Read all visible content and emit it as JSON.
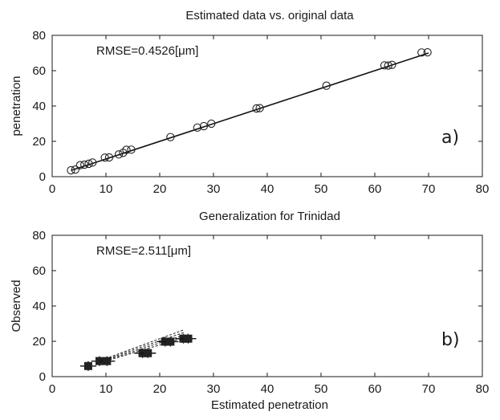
{
  "chart_data": [
    {
      "type": "scatter",
      "title": "Estimated data vs. original data",
      "xlabel": "",
      "ylabel": "penetration",
      "xlim": [
        0,
        80
      ],
      "ylim": [
        0,
        80
      ],
      "xticks": [
        "0",
        "10",
        "20",
        "30",
        "40",
        "50",
        "60",
        "70",
        "80"
      ],
      "yticks": [
        "0",
        "20",
        "40",
        "60",
        "80"
      ],
      "annotation": "RMSE=0.4526[μm]",
      "panel_label": "a)",
      "grid": false,
      "points": [
        [
          3.5,
          3.6
        ],
        [
          4.3,
          4.0
        ],
        [
          5.2,
          6.5
        ],
        [
          6.0,
          6.8
        ],
        [
          6.8,
          7.3
        ],
        [
          7.5,
          8.0
        ],
        [
          9.8,
          10.8
        ],
        [
          10.6,
          10.9
        ],
        [
          12.4,
          12.6
        ],
        [
          13.2,
          13.5
        ],
        [
          13.8,
          15.2
        ],
        [
          14.7,
          15.3
        ],
        [
          22.0,
          22.4
        ],
        [
          27.0,
          27.8
        ],
        [
          28.2,
          28.6
        ],
        [
          29.6,
          30.0
        ],
        [
          38.0,
          38.6
        ],
        [
          38.6,
          38.8
        ],
        [
          51.0,
          51.5
        ],
        [
          61.8,
          63.0
        ],
        [
          62.5,
          62.9
        ],
        [
          63.2,
          63.3
        ],
        [
          68.7,
          70.3
        ],
        [
          69.8,
          70.4
        ]
      ],
      "fit_line": [
        [
          3.5,
          3.5
        ],
        [
          70,
          70
        ]
      ]
    },
    {
      "type": "scatter",
      "title": "Generalization for Trinidad",
      "xlabel": "Estimated penetration",
      "ylabel": "Observed",
      "xlim": [
        0,
        80
      ],
      "ylim": [
        0,
        80
      ],
      "xticks": [
        "0",
        "10",
        "20",
        "30",
        "40",
        "50",
        "60",
        "70",
        "80"
      ],
      "yticks": [
        "0",
        "20",
        "40",
        "60",
        "80"
      ],
      "annotation": "RMSE=2.511[μm]",
      "panel_label": "b)",
      "grid": false,
      "points": [
        [
          6.7,
          6.0
        ],
        [
          8.8,
          8.8
        ],
        [
          10.2,
          8.8
        ],
        [
          16.8,
          13.3
        ],
        [
          17.8,
          13.3
        ],
        [
          21.0,
          19.8
        ],
        [
          22.0,
          19.8
        ],
        [
          24.4,
          21.5
        ],
        [
          25.3,
          21.5
        ]
      ],
      "fit_lines": [
        [
          [
            8.5,
            7.5
          ],
          [
            24.5,
            22.0
          ]
        ],
        [
          [
            8.5,
            7.8
          ],
          [
            24.5,
            23.5
          ]
        ],
        [
          [
            8.5,
            8.2
          ],
          [
            24.5,
            25.0
          ]
        ],
        [
          [
            8.5,
            8.6
          ],
          [
            24.5,
            26.5
          ]
        ]
      ]
    }
  ]
}
